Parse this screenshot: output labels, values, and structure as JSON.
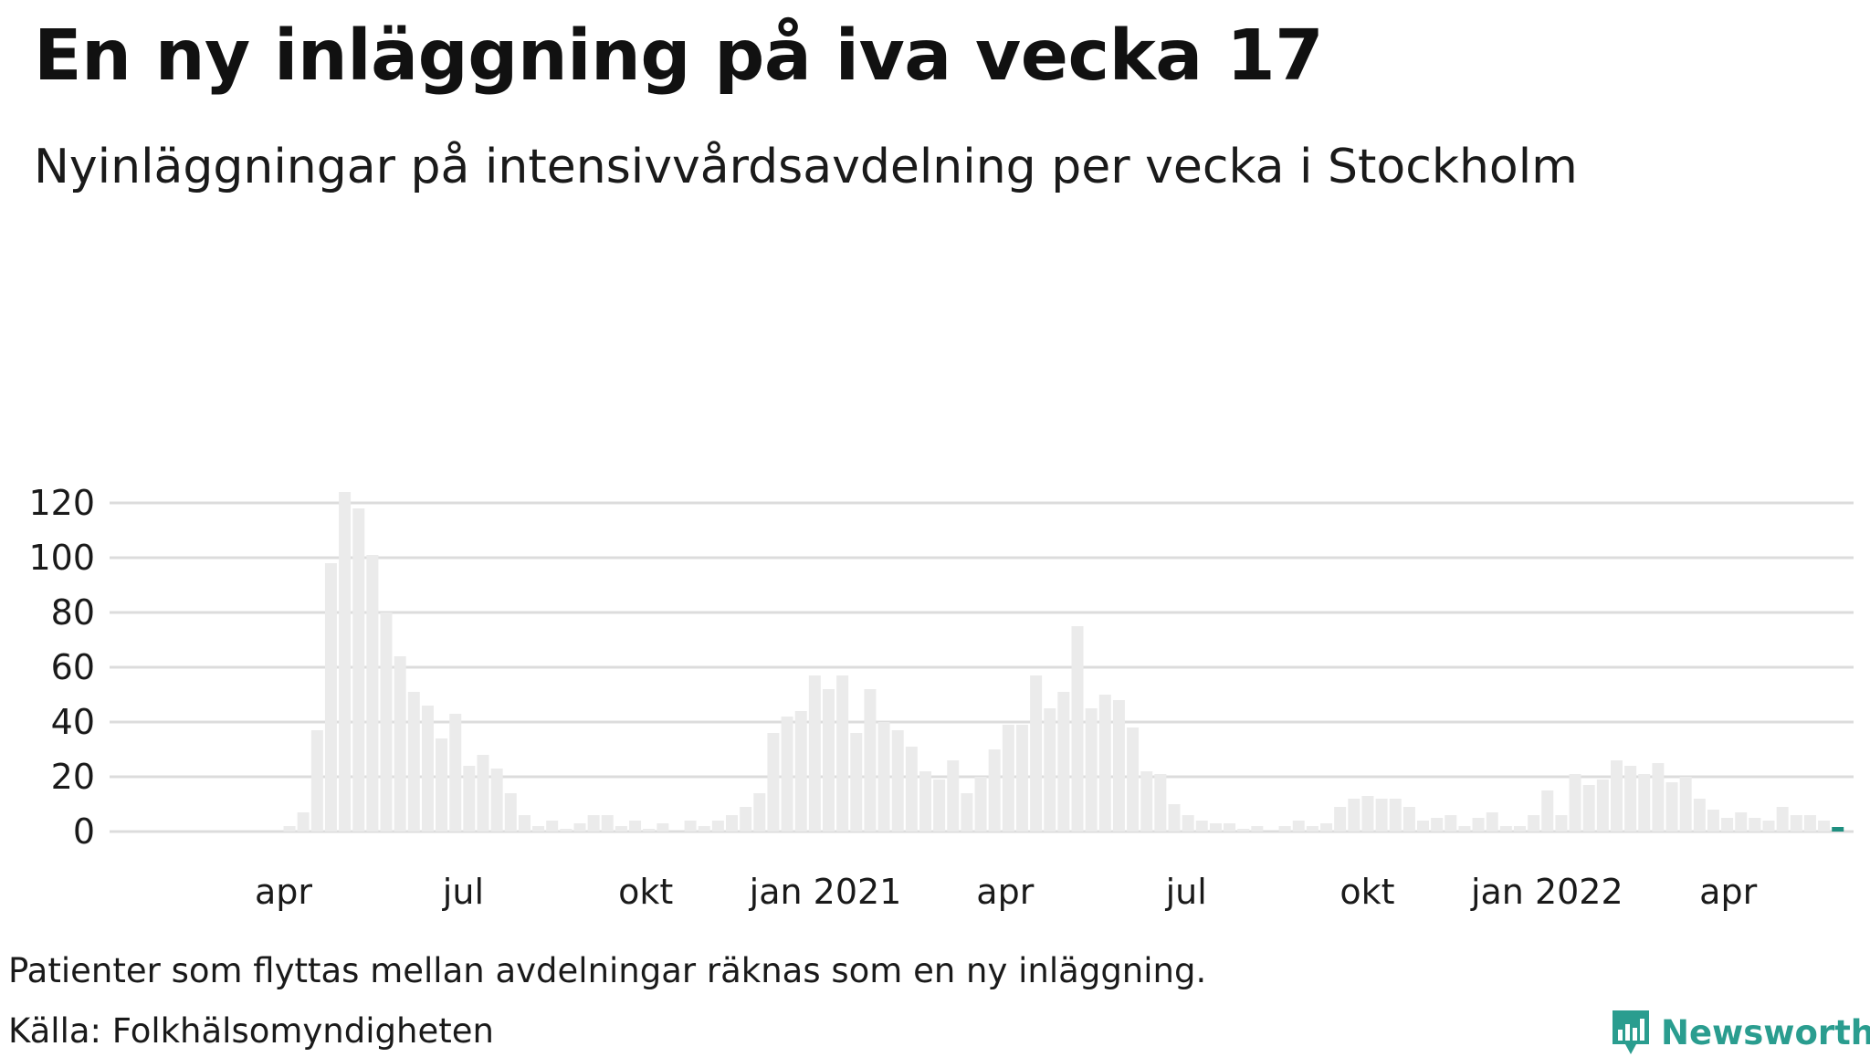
{
  "title": "En ny inläggning på iva vecka 17",
  "subtitle": "Nyinläggningar på intensivvårdsavdelning per vecka i Stockholm",
  "footnote": "Patienter som flyttas mellan avdelningar räknas som en ny inläggning.",
  "source": "Källa: Folkhälsomyndigheten",
  "logo": {
    "name": "Newsworthy",
    "icon": "newsworthy-chart-icon"
  },
  "colors": {
    "bar": "#ebebeb",
    "highlight": "#1f8f80",
    "grid": "#dcdcdc",
    "brand": "#2a9d8f"
  },
  "chart_data": {
    "type": "bar",
    "ylim": [
      0,
      130
    ],
    "y_ticks": [
      0,
      20,
      40,
      60,
      80,
      100,
      120
    ],
    "grid": true,
    "x_tick_labels": [
      {
        "label": "apr",
        "week": 10.5
      },
      {
        "label": "jul",
        "week": 23.5
      },
      {
        "label": "okt",
        "week": 36.7
      },
      {
        "label": "jan 2021",
        "week": 49.7
      },
      {
        "label": "apr",
        "week": 62.7
      },
      {
        "label": "jul",
        "week": 75.8
      },
      {
        "label": "okt",
        "week": 88.9
      },
      {
        "label": "jan 2022",
        "week": 101.9
      },
      {
        "label": "apr",
        "week": 115
      }
    ],
    "values": [
      0,
      0,
      0,
      0,
      0,
      0,
      0,
      0,
      0,
      0,
      0,
      2,
      7,
      37,
      98,
      124,
      118,
      101,
      80,
      64,
      51,
      46,
      34,
      43,
      24,
      28,
      23,
      14,
      6,
      2,
      4,
      1,
      3,
      6,
      6,
      2,
      4,
      1,
      3,
      0,
      4,
      2,
      4,
      6,
      9,
      14,
      36,
      42,
      44,
      57,
      52,
      57,
      36,
      52,
      40,
      37,
      31,
      22,
      19,
      26,
      14,
      20,
      30,
      39,
      39,
      57,
      45,
      51,
      75,
      45,
      50,
      48,
      38,
      22,
      21,
      10,
      6,
      4,
      3,
      3,
      1,
      2,
      0,
      2,
      4,
      2,
      3,
      9,
      12,
      13,
      12,
      12,
      9,
      4,
      5,
      6,
      2,
      5,
      7,
      2,
      2,
      6,
      15,
      6,
      21,
      17,
      19,
      26,
      24,
      21,
      25,
      18,
      20,
      12,
      8,
      5,
      7,
      5,
      4,
      9,
      6,
      6,
      4,
      1
    ],
    "highlight_last": true,
    "highlight_label": "vecka 17"
  }
}
